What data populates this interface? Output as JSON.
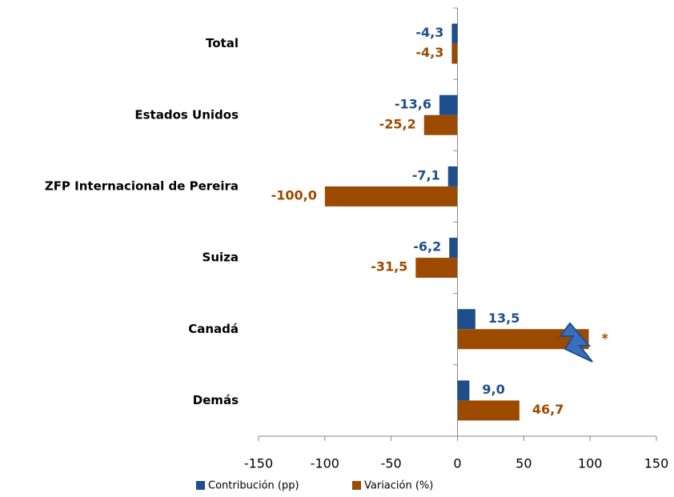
{
  "chart_data": {
    "type": "bar",
    "orientation": "horizontal",
    "categories": [
      "Total",
      "Estados Unidos",
      "ZFP Internacional de Pereira",
      "Suiza",
      "Canadá",
      "Demás"
    ],
    "series": [
      {
        "name": "Contribución (pp)",
        "color": "#1f4e8c",
        "values": [
          -4.3,
          -13.6,
          -7.1,
          -6.2,
          13.5,
          9.0
        ],
        "value_labels": [
          "-4,3",
          "-13,6",
          "-7,1",
          "-6,2",
          "13,5",
          "9,0"
        ]
      },
      {
        "name": "Variación (%)",
        "color": "#9c4a00",
        "values": [
          -4.3,
          -25.2,
          -100.0,
          -31.5,
          99,
          46.7
        ],
        "value_labels": [
          "-4,3",
          "-25,2",
          "-100,0",
          "-31,5",
          "*",
          "46,7"
        ]
      }
    ],
    "xlim": [
      -150,
      150
    ],
    "xticks": [
      -150,
      -100,
      -50,
      0,
      50,
      100,
      150
    ],
    "grid": false,
    "legend": "bottom"
  }
}
